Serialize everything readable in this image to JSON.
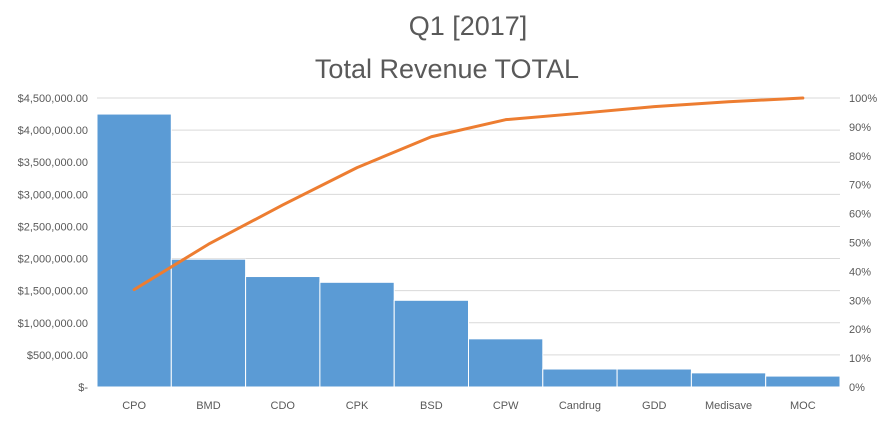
{
  "chart_data": {
    "type": "bar",
    "title": "Q1 [2017]",
    "subtitle": "Total Revenue TOTAL",
    "xlabel": "",
    "ylabel": "",
    "categories": [
      "CPO",
      "BMD",
      "CDO",
      "CPK",
      "BSD",
      "CPW",
      "Candrug",
      "GDD",
      "Medisave",
      "MOC"
    ],
    "series": [
      {
        "type": "bar",
        "axis": "left",
        "values": [
          4250000,
          1990000,
          1720000,
          1630000,
          1350000,
          750000,
          280000,
          280000,
          220000,
          170000
        ]
      },
      {
        "type": "line",
        "axis": "right",
        "values": [
          0.337,
          0.494,
          0.63,
          0.759,
          0.866,
          0.925,
          0.947,
          0.97,
          0.987,
          1.0
        ]
      }
    ],
    "ylim": [
      0,
      4500000
    ],
    "y2lim": [
      0,
      1
    ],
    "y_ticks": [
      "$-",
      "$500,000.00",
      "$1,000,000.00",
      "$1,500,000.00",
      "$2,000,000.00",
      "$2,500,000.00",
      "$3,000,000.00",
      "$3,500,000.00",
      "$4,000,000.00",
      "$4,500,000.00"
    ],
    "y2_ticks": [
      "0%",
      "10%",
      "20%",
      "30%",
      "40%",
      "50%",
      "60%",
      "70%",
      "80%",
      "90%",
      "100%"
    ],
    "grid": true,
    "legend": "none",
    "colors": {
      "bar": "#5B9BD5",
      "line": "#ED7D31",
      "grid": "#D9D9D9",
      "text": "#595959"
    }
  }
}
